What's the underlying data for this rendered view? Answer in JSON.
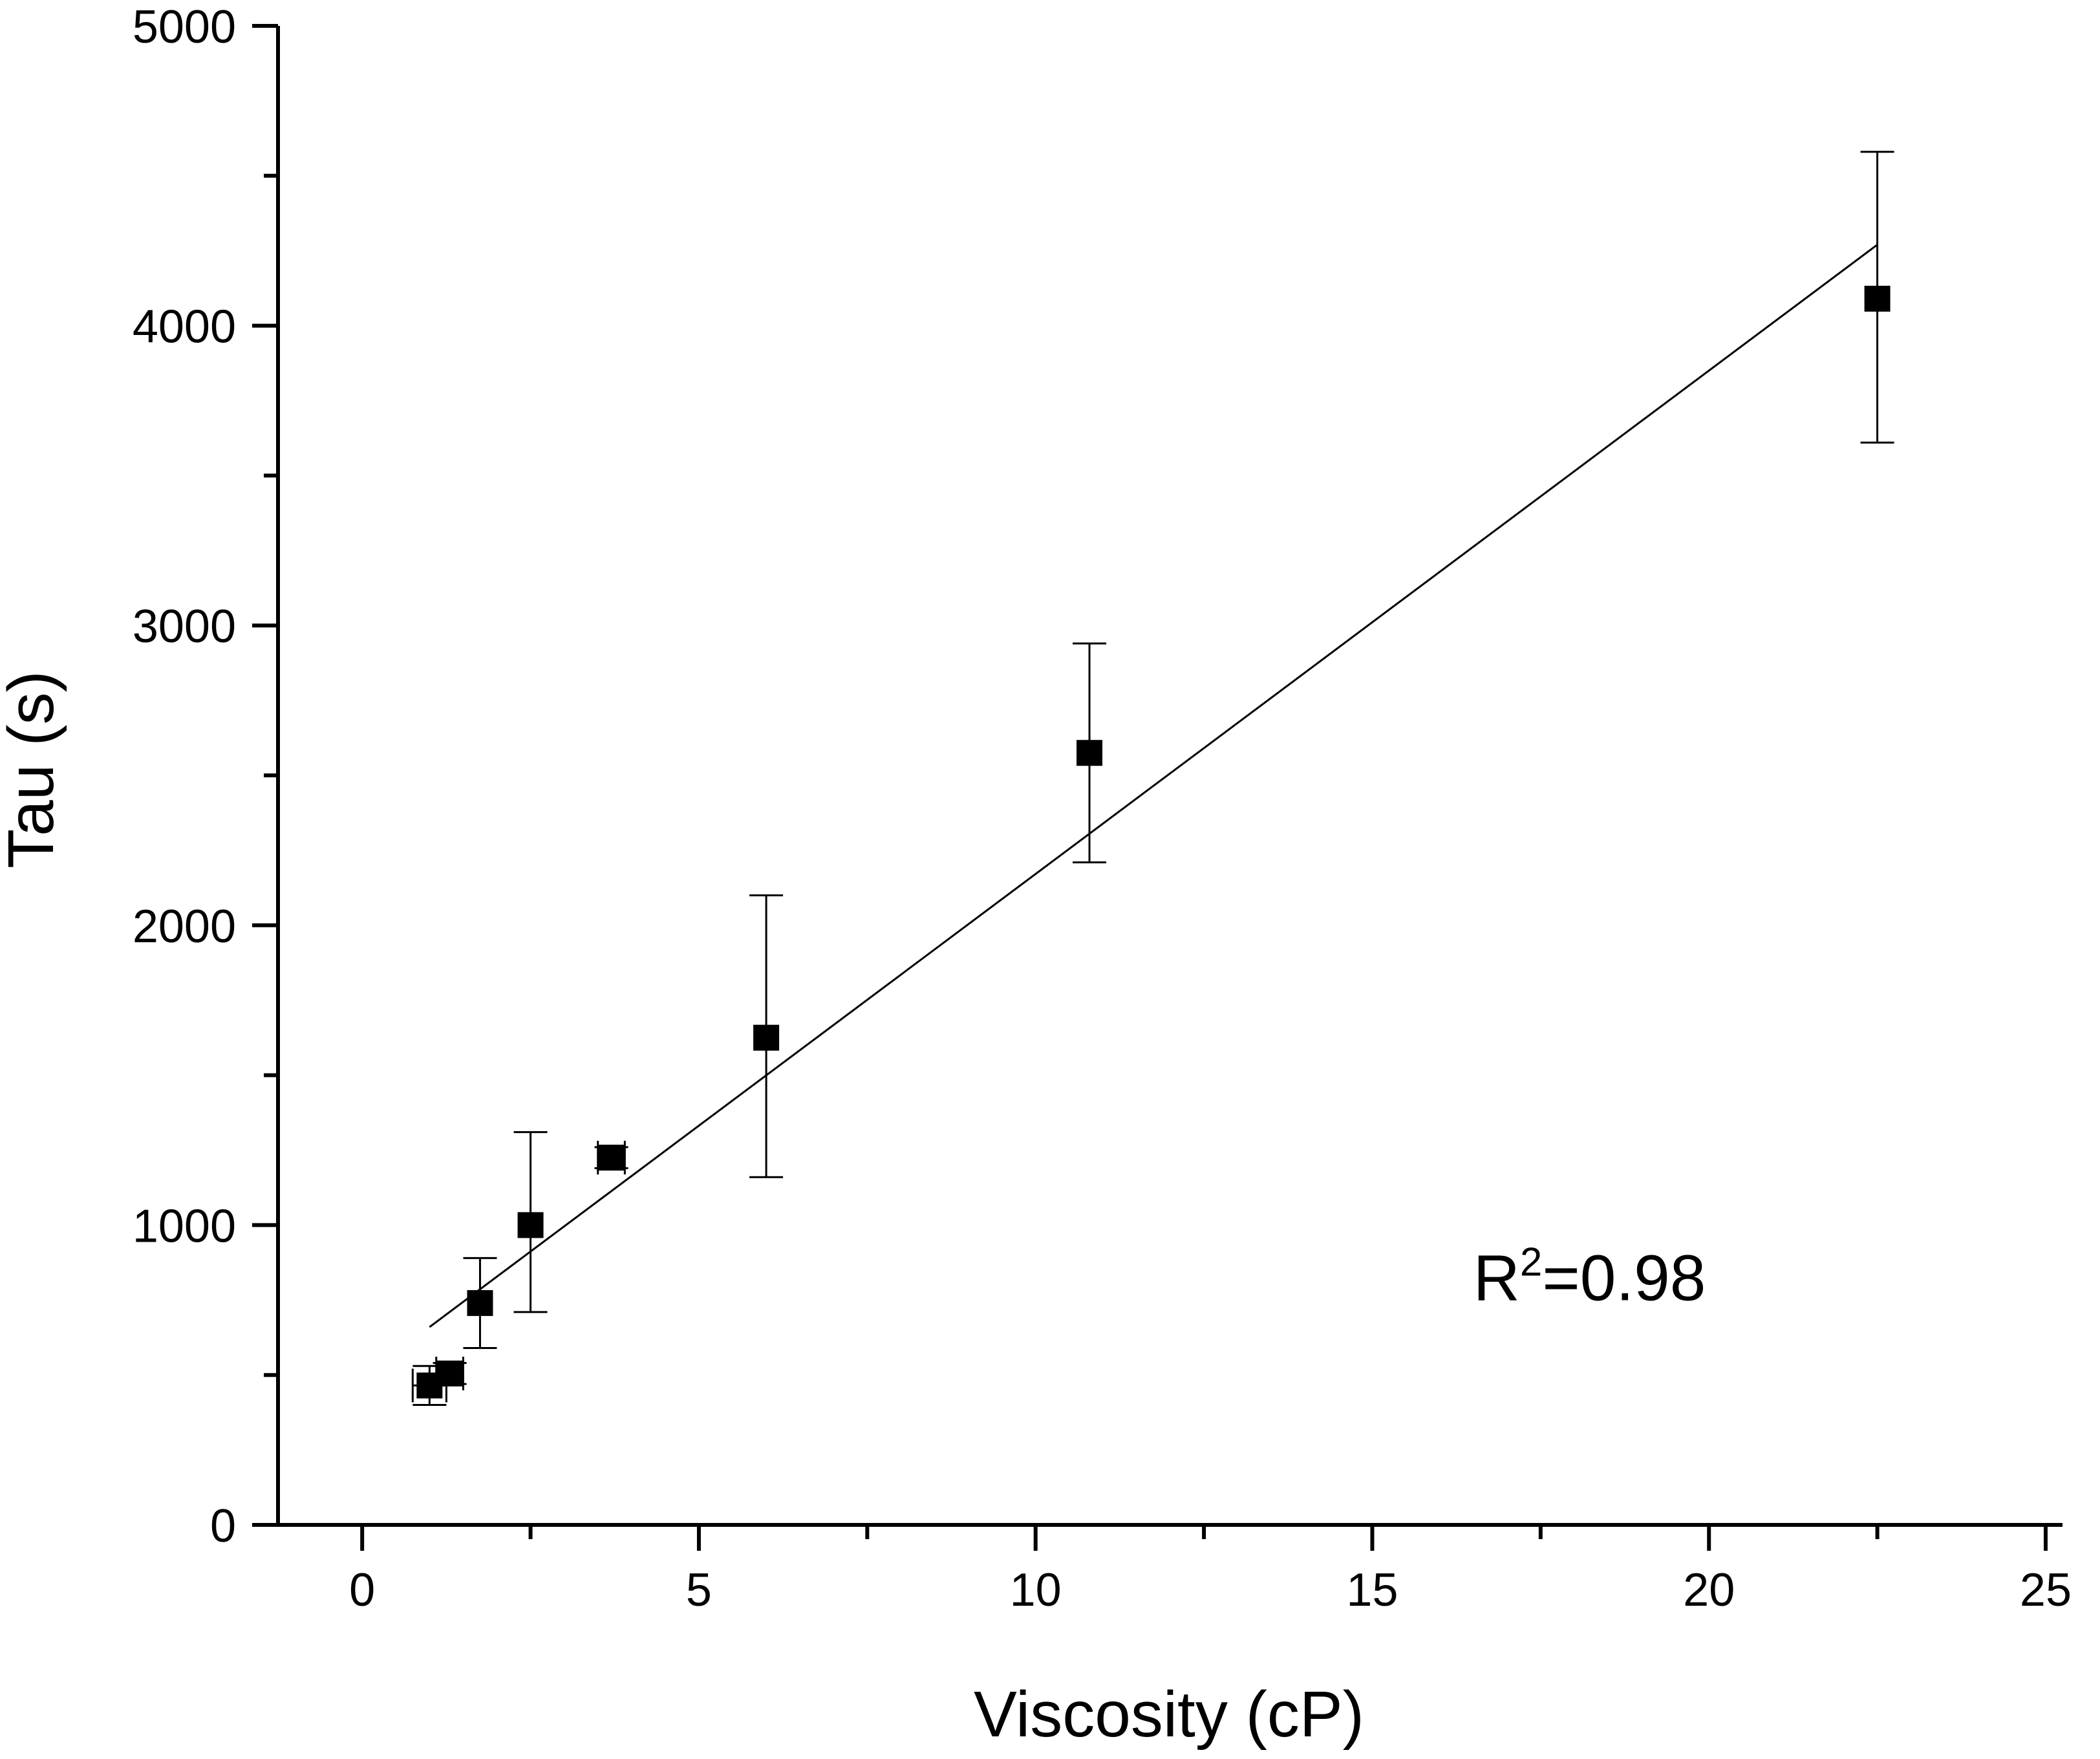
{
  "chart_data": {
    "type": "scatter",
    "xlabel": "Viscosity (cP)",
    "ylabel": "Tau (s)",
    "xlim": [
      -1.25,
      25.25
    ],
    "ylim": [
      0,
      5000
    ],
    "x_ticks": [
      0,
      5,
      10,
      15,
      20,
      25
    ],
    "x_tick_labels": [
      "0",
      "5",
      "10",
      "15",
      "20",
      "25"
    ],
    "x_minor_ticks": [
      2.5,
      7.5,
      12.5,
      17.5,
      22.5
    ],
    "y_ticks": [
      0,
      1000,
      2000,
      3000,
      4000,
      5000
    ],
    "y_tick_labels": [
      "0",
      "1000",
      "2000",
      "3000",
      "4000",
      "5000"
    ],
    "y_minor_ticks": [
      500,
      1500,
      2500,
      3500,
      4500
    ],
    "grid": false,
    "legend": "none",
    "marker": "square",
    "color": "#000000",
    "series": [
      {
        "points": [
          {
            "x": 1.0,
            "y": 465,
            "yerr_low": 400,
            "yerr_high": 530,
            "xerr_low": 0.75,
            "xerr_high": 1.25
          },
          {
            "x": 1.3,
            "y": 505,
            "yerr_low": 470,
            "yerr_high": 540,
            "xerr_low": 1.1,
            "xerr_high": 1.5
          },
          {
            "x": 1.75,
            "y": 740,
            "yerr_low": 590,
            "yerr_high": 890
          },
          {
            "x": 2.5,
            "y": 1000,
            "yerr_low": 710,
            "yerr_high": 1310
          },
          {
            "x": 3.7,
            "y": 1225,
            "yerr_low": 1190,
            "yerr_high": 1260,
            "xerr_low": 3.5,
            "xerr_high": 3.9
          },
          {
            "x": 6.0,
            "y": 1625,
            "yerr_low": 1160,
            "yerr_high": 2100
          },
          {
            "x": 10.8,
            "y": 2575,
            "yerr_low": 2210,
            "yerr_high": 2940
          },
          {
            "x": 22.5,
            "y": 4090,
            "yerr_low": 3610,
            "yerr_high": 4580
          }
        ]
      }
    ],
    "fit_line": {
      "x": [
        1.0,
        22.5
      ],
      "y": [
        660,
        4270
      ]
    },
    "annotation": {
      "text": "R",
      "superscript": "2",
      "suffix": "=0.98",
      "x": 16.5,
      "y": 750
    }
  }
}
